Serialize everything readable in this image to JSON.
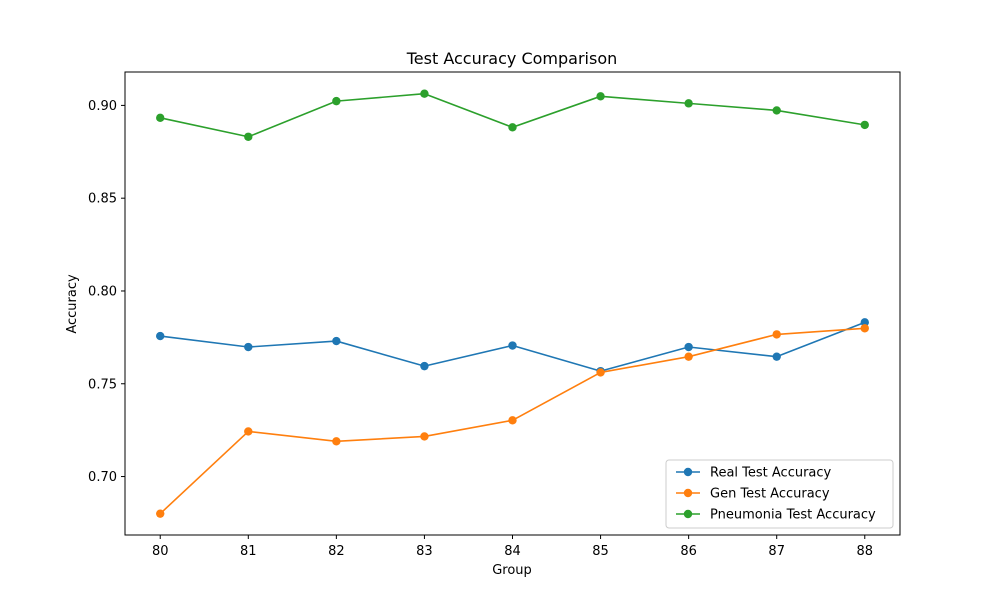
{
  "chart_data": {
    "type": "line",
    "title": "Test Accuracy Comparison",
    "xlabel": "Group",
    "ylabel": "Accuracy",
    "x": [
      80,
      81,
      82,
      83,
      84,
      85,
      86,
      87,
      88
    ],
    "xlim": [
      79.6,
      88.4
    ],
    "ylim": [
      0.6685,
      0.918
    ],
    "y_ticks": [
      "0.70",
      "0.75",
      "0.80",
      "0.85",
      "0.90"
    ],
    "x_ticks": [
      "80",
      "81",
      "82",
      "83",
      "84",
      "85",
      "86",
      "87",
      "88"
    ],
    "grid": false,
    "legend_position": "lower-right",
    "series": [
      {
        "name": "Real Test Accuracy",
        "color": "#1f77b4",
        "values": [
          0.7757,
          0.7698,
          0.773,
          0.7595,
          0.7706,
          0.7568,
          0.7698,
          0.7646,
          0.7831
        ]
      },
      {
        "name": "Gen Test Accuracy",
        "color": "#ff7f0e",
        "values": [
          0.68,
          0.7243,
          0.719,
          0.7216,
          0.7303,
          0.7561,
          0.7646,
          0.7766,
          0.7799
        ]
      },
      {
        "name": "Pneumonia Test Accuracy",
        "color": "#2ca02c",
        "values": [
          0.8933,
          0.8831,
          0.9023,
          0.9063,
          0.8882,
          0.9049,
          0.9011,
          0.8973,
          0.8895
        ]
      }
    ]
  }
}
